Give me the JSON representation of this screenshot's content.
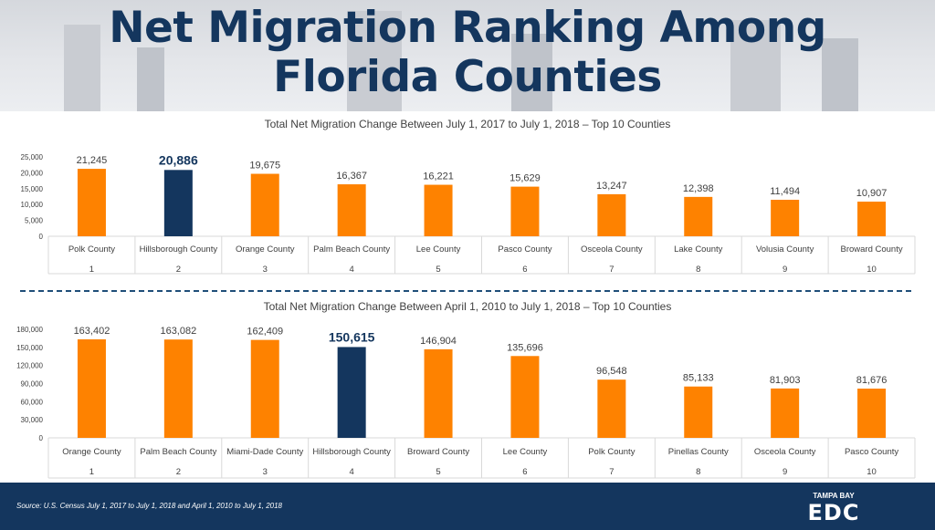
{
  "title_line1": "Net Migration Ranking Among",
  "title_line2": "Florida Counties",
  "colors": {
    "orange": "#fe8200",
    "navy": "#14365e",
    "title": "#14365e",
    "grid": "#d9d9d9",
    "text": "#404040"
  },
  "chart_data": [
    {
      "type": "bar",
      "title": "Total Net Migration Change Between July 1, 2017 to July 1, 2018 – Top 10 Counties",
      "categories": [
        "Polk County",
        "Hillsborough County",
        "Orange County",
        "Palm Beach County",
        "Lee County",
        "Pasco County",
        "Osceola County",
        "Lake County",
        "Volusia County",
        "Broward County"
      ],
      "ranks": [
        "1",
        "2",
        "3",
        "4",
        "5",
        "6",
        "7",
        "8",
        "9",
        "10"
      ],
      "values": [
        21245,
        20886,
        19675,
        16367,
        16221,
        15629,
        13247,
        12398,
        11494,
        10907
      ],
      "value_labels": [
        "21,245",
        "20,886",
        "19,675",
        "16,367",
        "16,221",
        "15,629",
        "13,247",
        "12,398",
        "11,494",
        "10,907"
      ],
      "highlight_index": 1,
      "ylim": [
        0,
        25000
      ],
      "yticks": [
        0,
        5000,
        10000,
        15000,
        20000,
        25000
      ],
      "ytick_labels": [
        "0",
        "5,000",
        "10,000",
        "15,000",
        "20,000",
        "25,000"
      ],
      "grid": false,
      "legend": "none"
    },
    {
      "type": "bar",
      "title": "Total Net Migration Change Between April 1, 2010 to July 1, 2018 – Top 10 Counties",
      "categories": [
        "Orange County",
        "Palm Beach County",
        "Miami-Dade County",
        "Hillsborough County",
        "Broward County",
        "Lee County",
        "Polk County",
        "Pinellas County",
        "Osceola County",
        "Pasco County"
      ],
      "ranks": [
        "1",
        "2",
        "3",
        "4",
        "5",
        "6",
        "7",
        "8",
        "9",
        "10"
      ],
      "values": [
        163402,
        163082,
        162409,
        150615,
        146904,
        135696,
        96548,
        85133,
        81903,
        81676
      ],
      "value_labels": [
        "163,402",
        "163,082",
        "162,409",
        "150,615",
        "146,904",
        "135,696",
        "96,548",
        "85,133",
        "81,903",
        "81,676"
      ],
      "highlight_index": 3,
      "ylim": [
        0,
        180000
      ],
      "yticks": [
        0,
        30000,
        60000,
        90000,
        120000,
        150000,
        180000
      ],
      "ytick_labels": [
        "0",
        "30,000",
        "60,000",
        "90,000",
        "120,000",
        "150,000",
        "180,000"
      ],
      "grid": false,
      "legend": "none"
    }
  ],
  "footer": {
    "source": "Source: U.S. Census July 1, 2017 to July 1, 2018 and April 1, 2010 to July 1, 2018",
    "logo_text": "TAMPA BAY",
    "logo_mark": "EDC"
  }
}
